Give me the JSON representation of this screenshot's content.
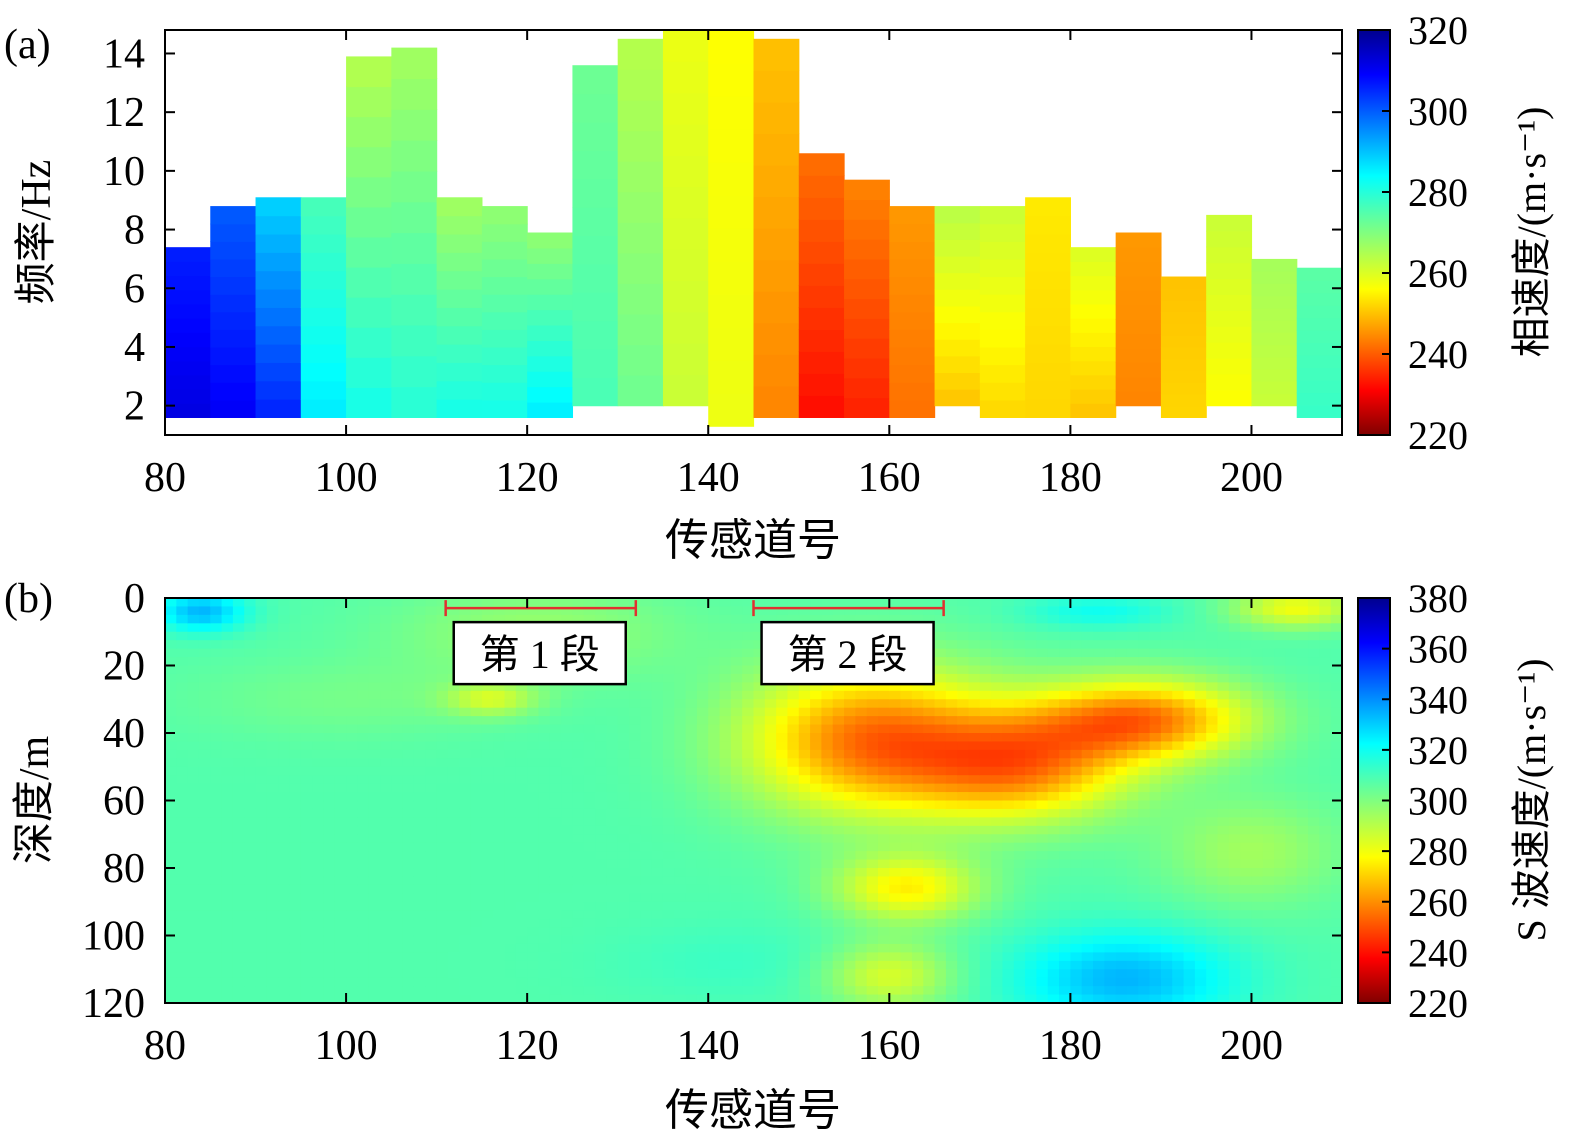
{
  "chart_data": [
    {
      "panel_label": "(a)",
      "type": "heatmap",
      "xlabel": "传感道号",
      "ylabel": "频率/Hz",
      "colorbar_label": "相速度/(m·s⁻¹)",
      "xlim": [
        80,
        210
      ],
      "ylim": [
        1.0,
        14.8
      ],
      "x_ticks": [
        "80",
        "100",
        "120",
        "140",
        "160",
        "180",
        "200"
      ],
      "y_ticks": [
        "2",
        "4",
        "6",
        "8",
        "10",
        "12",
        "14"
      ],
      "colorbar_range": [
        220,
        320
      ],
      "colorbar_ticks": [
        "220",
        "240",
        "260",
        "280",
        "300",
        "320"
      ],
      "column_width": 5,
      "columns": [
        {
          "x": 80,
          "fmin": 1.6,
          "fmax": 7.4,
          "v_low": 312,
          "v_high": 306
        },
        {
          "x": 85,
          "fmin": 1.6,
          "fmax": 8.8,
          "v_low": 310,
          "v_high": 300
        },
        {
          "x": 90,
          "fmin": 1.6,
          "fmax": 9.1,
          "v_low": 306,
          "v_high": 288
        },
        {
          "x": 95,
          "fmin": 1.6,
          "fmax": 9.1,
          "v_low": 286,
          "v_high": 276
        },
        {
          "x": 100,
          "fmin": 1.6,
          "fmax": 13.9,
          "v_low": 282,
          "v_high": 264
        },
        {
          "x": 105,
          "fmin": 1.6,
          "fmax": 14.2,
          "v_low": 280,
          "v_high": 266
        },
        {
          "x": 110,
          "fmin": 1.6,
          "fmax": 9.1,
          "v_low": 282,
          "v_high": 266
        },
        {
          "x": 115,
          "fmin": 1.6,
          "fmax": 8.8,
          "v_low": 282,
          "v_high": 268
        },
        {
          "x": 120,
          "fmin": 1.6,
          "fmax": 7.9,
          "v_low": 286,
          "v_high": 268
        },
        {
          "x": 125,
          "fmin": 2.0,
          "fmax": 13.6,
          "v_low": 276,
          "v_high": 272
        },
        {
          "x": 130,
          "fmin": 2.0,
          "fmax": 14.5,
          "v_low": 272,
          "v_high": 264
        },
        {
          "x": 135,
          "fmin": 2.0,
          "fmax": 14.8,
          "v_low": 262,
          "v_high": 258
        },
        {
          "x": 140,
          "fmin": 1.3,
          "fmax": 14.8,
          "v_low": 258,
          "v_high": 256
        },
        {
          "x": 145,
          "fmin": 1.6,
          "fmax": 14.5,
          "v_low": 244,
          "v_high": 250
        },
        {
          "x": 150,
          "fmin": 1.6,
          "fmax": 10.6,
          "v_low": 232,
          "v_high": 242
        },
        {
          "x": 155,
          "fmin": 1.6,
          "fmax": 9.7,
          "v_low": 234,
          "v_high": 244
        },
        {
          "x": 160,
          "fmin": 1.6,
          "fmax": 8.8,
          "v_low": 242,
          "v_high": 246
        },
        {
          "x": 165,
          "fmin": 2.0,
          "fmax": 8.8,
          "v_low": 250,
          "v_high": 264
        },
        {
          "x": 170,
          "fmin": 1.6,
          "fmax": 8.8,
          "v_low": 252,
          "v_high": 262
        },
        {
          "x": 175,
          "fmin": 1.6,
          "fmax": 9.1,
          "v_low": 252,
          "v_high": 254
        },
        {
          "x": 180,
          "fmin": 1.6,
          "fmax": 7.4,
          "v_low": 250,
          "v_high": 260
        },
        {
          "x": 185,
          "fmin": 2.0,
          "fmax": 7.9,
          "v_low": 244,
          "v_high": 246
        },
        {
          "x": 190,
          "fmin": 1.6,
          "fmax": 6.4,
          "v_low": 252,
          "v_high": 250
        },
        {
          "x": 195,
          "fmin": 2.0,
          "fmax": 8.5,
          "v_low": 256,
          "v_high": 262
        },
        {
          "x": 200,
          "fmin": 2.0,
          "fmax": 7.0,
          "v_low": 262,
          "v_high": 266
        },
        {
          "x": 205,
          "fmin": 1.6,
          "fmax": 6.7,
          "v_low": 278,
          "v_high": 274
        }
      ]
    },
    {
      "panel_label": "(b)",
      "type": "heatmap",
      "xlabel": "传感道号",
      "ylabel": "深度/m",
      "colorbar_label": "S 波速度/(m·s⁻¹)",
      "xlim": [
        80,
        210
      ],
      "ylim": [
        0,
        120
      ],
      "y_inverted": true,
      "x_ticks": [
        "80",
        "100",
        "120",
        "140",
        "160",
        "180",
        "200"
      ],
      "y_ticks": [
        "0",
        "20",
        "40",
        "60",
        "80",
        "100",
        "120"
      ],
      "colorbar_range": [
        220,
        380
      ],
      "colorbar_ticks": [
        "220",
        "240",
        "260",
        "280",
        "300",
        "320",
        "340",
        "360",
        "380"
      ],
      "background_velocity": 308,
      "anomalies": [
        {
          "x": 84,
          "depth": 4,
          "sx": 5,
          "sy": 6,
          "dv": 26
        },
        {
          "x": 116,
          "depth": 30,
          "sx": 5,
          "sy": 5,
          "dv": -20
        },
        {
          "x": 121,
          "depth": 10,
          "sx": 16,
          "sy": 14,
          "dv": -12
        },
        {
          "x": 100,
          "depth": 30,
          "sx": 18,
          "sy": 12,
          "dv": -6
        },
        {
          "x": 158,
          "depth": 42,
          "sx": 14,
          "sy": 22,
          "dv": -52
        },
        {
          "x": 162,
          "depth": 86,
          "sx": 8,
          "sy": 10,
          "dv": -32
        },
        {
          "x": 175,
          "depth": 50,
          "sx": 12,
          "sy": 16,
          "dv": -44
        },
        {
          "x": 188,
          "depth": 36,
          "sx": 12,
          "sy": 12,
          "dv": -50
        },
        {
          "x": 205,
          "depth": 3,
          "sx": 7,
          "sy": 6,
          "dv": -28
        },
        {
          "x": 183,
          "depth": 4,
          "sx": 8,
          "sy": 5,
          "dv": 12
        },
        {
          "x": 186,
          "depth": 113,
          "sx": 12,
          "sy": 14,
          "dv": 26
        },
        {
          "x": 160,
          "depth": 112,
          "sx": 7,
          "sy": 10,
          "dv": -24
        },
        {
          "x": 200,
          "depth": 75,
          "sx": 10,
          "sy": 16,
          "dv": -14
        },
        {
          "x": 143,
          "depth": 108,
          "sx": 14,
          "sy": 12,
          "dv": 4
        }
      ],
      "annotations": [
        {
          "label": "第 1 段",
          "x_start": 111,
          "x_end": 132,
          "depth": 3
        },
        {
          "label": "第 2 段",
          "x_start": 145,
          "x_end": 166,
          "depth": 3
        }
      ]
    }
  ]
}
